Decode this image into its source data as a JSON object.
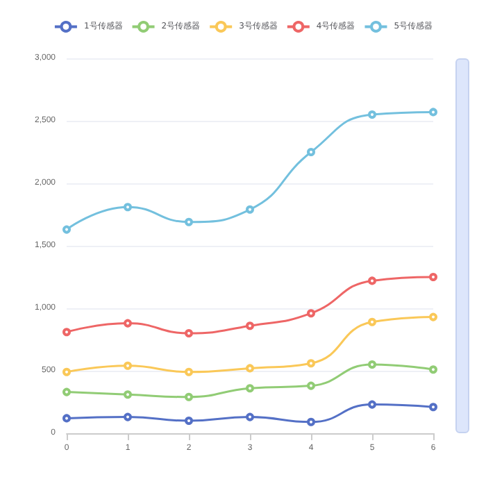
{
  "chart_data": {
    "type": "line",
    "categories": [
      "0",
      "1",
      "2",
      "3",
      "4",
      "5",
      "6"
    ],
    "series": [
      {
        "name": "1号传感器",
        "color": "#5470c6",
        "values": [
          120,
          130,
          100,
          130,
          90,
          230,
          210
        ]
      },
      {
        "name": "2号传感器",
        "color": "#91cc75",
        "values": [
          330,
          310,
          290,
          360,
          380,
          550,
          510
        ]
      },
      {
        "name": "3号传感器",
        "color": "#fac858",
        "values": [
          490,
          540,
          490,
          520,
          560,
          890,
          930
        ]
      },
      {
        "name": "4号传感器",
        "color": "#ee6666",
        "values": [
          810,
          880,
          800,
          860,
          960,
          1220,
          1250
        ]
      },
      {
        "name": "5号传感器",
        "color": "#73c0de",
        "values": [
          1630,
          1810,
          1690,
          1790,
          2250,
          2550,
          2570
        ]
      }
    ],
    "ylim": [
      0,
      3000
    ],
    "yticks": [
      0,
      500,
      {
        "value": 1000,
        "label": "1,000"
      },
      {
        "value": 1500,
        "label": "1,500"
      },
      {
        "value": 2000,
        "label": "2,000"
      },
      {
        "value": 2500,
        "label": "2,500"
      },
      {
        "value": 3000,
        "label": "3,000"
      }
    ],
    "grid": "y",
    "legend": "top",
    "marker": "circle",
    "line_style": "solid"
  }
}
